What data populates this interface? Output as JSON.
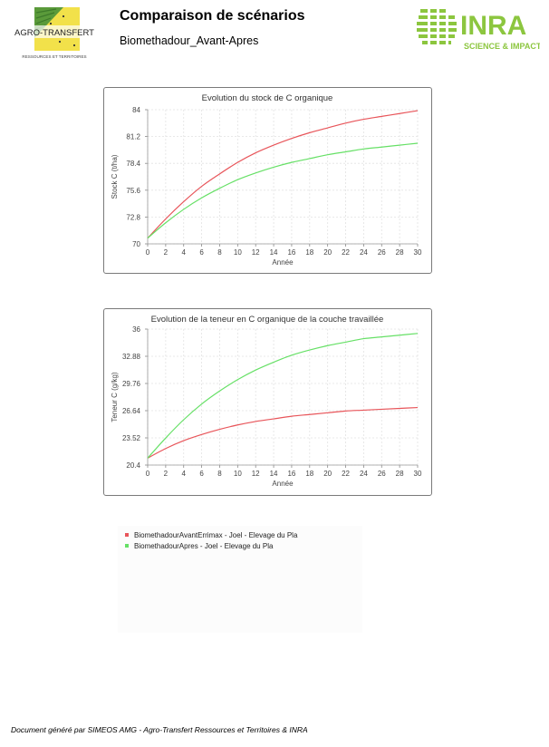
{
  "header": {
    "title": "Comparaison de scénarios",
    "subtitle": "Biomethadour_Avant-Apres"
  },
  "logos": {
    "left": {
      "name": "AGRO-TRANSFERT",
      "tagline": "RESSOURCES ET TERRITOIRES"
    },
    "right": {
      "name": "INRA",
      "tagline": "SCIENCE & IMPACT"
    }
  },
  "colors": {
    "series_red": "#e8555a",
    "series_green": "#66e066",
    "inra_green": "#8cc63f",
    "agro_green": "#5a9a3a",
    "agro_yellow": "#f2e14a"
  },
  "chart_data": [
    {
      "type": "line",
      "title": "Evolution du stock de C organique",
      "xlabel": "Année",
      "ylabel": "Stock C (t/ha)",
      "xlim": [
        0,
        30
      ],
      "ylim": [
        70,
        84
      ],
      "xticks": [
        "0",
        "2",
        "4",
        "6",
        "8",
        "10",
        "12",
        "14",
        "16",
        "18",
        "20",
        "22",
        "24",
        "26",
        "28",
        "30"
      ],
      "yticks": [
        "70",
        "72.8",
        "75.6",
        "78.4",
        "81.2",
        "84"
      ],
      "grid": true,
      "x": [
        0,
        2,
        4,
        6,
        8,
        10,
        12,
        14,
        16,
        18,
        20,
        22,
        24,
        26,
        28,
        30
      ],
      "series": [
        {
          "name": "BiomethadourAvantErrimax - Joel - Elevage du Pla",
          "color": "#e8555a",
          "values": [
            70.6,
            72.6,
            74.4,
            76.0,
            77.3,
            78.5,
            79.5,
            80.3,
            81.0,
            81.6,
            82.1,
            82.6,
            83.0,
            83.3,
            83.6,
            83.9
          ]
        },
        {
          "name": "BiomethadourApres - Joel - Elevage du Pla",
          "color": "#66e066",
          "values": [
            70.6,
            72.2,
            73.6,
            74.8,
            75.8,
            76.7,
            77.4,
            78.0,
            78.5,
            78.9,
            79.3,
            79.6,
            79.9,
            80.1,
            80.3,
            80.5
          ]
        }
      ]
    },
    {
      "type": "line",
      "title": "Evolution de la teneur en C organique de la couche travaillée",
      "xlabel": "Année",
      "ylabel": "Teneur C (g/kg)",
      "xlim": [
        0,
        30
      ],
      "ylim": [
        20.4,
        36
      ],
      "xticks": [
        "0",
        "2",
        "4",
        "6",
        "8",
        "10",
        "12",
        "14",
        "16",
        "18",
        "20",
        "22",
        "24",
        "26",
        "28",
        "30"
      ],
      "yticks": [
        "20.4",
        "23.52",
        "26.64",
        "29.76",
        "32.88",
        "36"
      ],
      "grid": true,
      "x": [
        0,
        2,
        4,
        6,
        8,
        10,
        12,
        14,
        16,
        18,
        20,
        22,
        24,
        26,
        28,
        30
      ],
      "series": [
        {
          "name": "BiomethadourAvantErrimax - Joel - Elevage du Pla",
          "color": "#e8555a",
          "values": [
            21.2,
            22.3,
            23.2,
            23.9,
            24.5,
            25.0,
            25.4,
            25.7,
            26.0,
            26.2,
            26.4,
            26.6,
            26.7,
            26.8,
            26.9,
            27.0
          ]
        },
        {
          "name": "BiomethadourApres - Joel - Elevage du Pla",
          "color": "#66e066",
          "values": [
            21.2,
            23.5,
            25.6,
            27.4,
            28.9,
            30.2,
            31.3,
            32.2,
            33.0,
            33.6,
            34.1,
            34.5,
            34.9,
            35.1,
            35.3,
            35.5
          ]
        }
      ]
    }
  ],
  "legend": [
    {
      "label": "BiomethadourAvantErrimax - Joel - Elevage du Pla",
      "color": "#e8555a"
    },
    {
      "label": "BiomethadourApres - Joel - Elevage du Pla",
      "color": "#66e066"
    }
  ],
  "footer": {
    "text": "Document généré par SIMEOS AMG  -  Agro-Transfert Ressources et Territoires & INRA"
  }
}
